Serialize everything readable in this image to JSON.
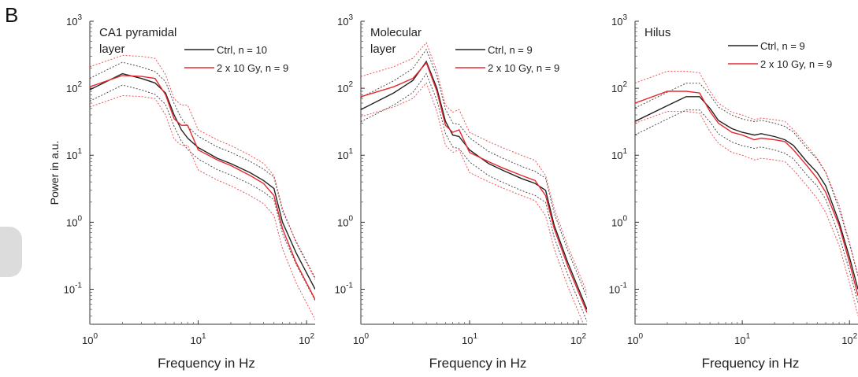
{
  "figure": {
    "panel_letter": "B",
    "y_axis_label": "Power in a.u."
  },
  "chart_data": [
    {
      "type": "line",
      "title": "CA1 pyramidal layer",
      "title_lines": [
        "CA1 pyramidal",
        "layer"
      ],
      "xlabel": "Frequency in Hz",
      "ylabel": "Power in a.u.",
      "xscale": "log",
      "yscale": "log",
      "xlim": [
        1,
        120
      ],
      "ylim": [
        0.03,
        1000
      ],
      "grid": false,
      "legend": "top-right",
      "x_ticks": [
        {
          "base": "10",
          "exp": "0"
        },
        {
          "base": "10",
          "exp": "1"
        },
        {
          "base": "10",
          "exp": "2"
        }
      ],
      "y_ticks": [
        {
          "base": "10",
          "exp": "-1"
        },
        {
          "base": "10",
          "exp": "0"
        },
        {
          "base": "10",
          "exp": "1"
        },
        {
          "base": "10",
          "exp": "2"
        },
        {
          "base": "10",
          "exp": "3"
        }
      ],
      "x": [
        1,
        2,
        3,
        4,
        5,
        6,
        7,
        8,
        10,
        15,
        20,
        30,
        40,
        50,
        60,
        80,
        120
      ],
      "series": [
        {
          "name": "Ctrl, n = 10",
          "color": "#222222",
          "values": [
            95,
            165,
            140,
            120,
            85,
            40,
            24,
            18,
            13,
            9,
            7.5,
            5.5,
            4.2,
            3.2,
            1.0,
            0.35,
            0.1
          ],
          "band": 0.17
        },
        {
          "name": "2 x 10 Gy, n = 9",
          "color": "#e8282e",
          "values": [
            105,
            155,
            150,
            140,
            80,
            35,
            28,
            28,
            12,
            8.5,
            7,
            5.0,
            3.8,
            2.5,
            0.8,
            0.25,
            0.07
          ],
          "band": 0.3
        }
      ]
    },
    {
      "type": "line",
      "title": "Molecular layer",
      "title_lines": [
        "Molecular",
        "layer"
      ],
      "xlabel": "Frequency in Hz",
      "xscale": "log",
      "yscale": "log",
      "xlim": [
        1,
        120
      ],
      "ylim": [
        0.03,
        1000
      ],
      "grid": false,
      "legend": "top-right",
      "x_ticks": [
        {
          "base": "10",
          "exp": "0"
        },
        {
          "base": "10",
          "exp": "1"
        },
        {
          "base": "10",
          "exp": "2"
        }
      ],
      "y_ticks": [
        {
          "base": "10",
          "exp": "-1"
        },
        {
          "base": "10",
          "exp": "0"
        },
        {
          "base": "10",
          "exp": "1"
        },
        {
          "base": "10",
          "exp": "2"
        },
        {
          "base": "10",
          "exp": "3"
        }
      ],
      "x": [
        1,
        2,
        3,
        4,
        5,
        6,
        7,
        8,
        10,
        15,
        20,
        30,
        40,
        50,
        60,
        80,
        120
      ],
      "series": [
        {
          "name": "Ctrl, n = 9",
          "color": "#222222",
          "values": [
            48,
            85,
            130,
            250,
            100,
            32,
            20,
            19,
            12,
            7.5,
            6,
            4.5,
            3.8,
            3.0,
            0.9,
            0.25,
            0.05
          ],
          "band": 0.18
        },
        {
          "name": "2 x 10 Gy, n = 9",
          "color": "#e8282e",
          "values": [
            75,
            105,
            140,
            240,
            90,
            28,
            22,
            24,
            11,
            8,
            6.5,
            5,
            4.2,
            2.5,
            0.8,
            0.22,
            0.045
          ],
          "band": 0.3
        }
      ]
    },
    {
      "type": "line",
      "title": "Hilus",
      "title_lines": [
        "Hilus"
      ],
      "xlabel": "Frequency in Hz",
      "xscale": "log",
      "yscale": "log",
      "xlim": [
        1,
        120
      ],
      "ylim": [
        0.03,
        1000
      ],
      "grid": false,
      "legend": "top-right",
      "x_ticks": [
        {
          "base": "10",
          "exp": "0"
        },
        {
          "base": "10",
          "exp": "1"
        },
        {
          "base": "10",
          "exp": "2"
        }
      ],
      "y_ticks": [
        {
          "base": "10",
          "exp": "-1"
        },
        {
          "base": "10",
          "exp": "0"
        },
        {
          "base": "10",
          "exp": "1"
        },
        {
          "base": "10",
          "exp": "2"
        },
        {
          "base": "10",
          "exp": "3"
        }
      ],
      "x": [
        1,
        2,
        3,
        4,
        5,
        6,
        8,
        10,
        13,
        15,
        20,
        25,
        30,
        40,
        50,
        60,
        80,
        100,
        120
      ],
      "series": [
        {
          "name": "Ctrl, n = 9",
          "color": "#222222",
          "values": [
            32,
            55,
            75,
            75,
            50,
            33,
            25,
            22,
            20,
            21,
            19,
            17,
            14,
            8,
            5.5,
            3.5,
            1.0,
            0.3,
            0.1
          ],
          "band": 0.2
        },
        {
          "name": "2 x 10 Gy, n = 9",
          "color": "#e8282e",
          "values": [
            60,
            90,
            90,
            85,
            45,
            30,
            22,
            20,
            17,
            18,
            17,
            16,
            12,
            7,
            4.5,
            2.8,
            0.9,
            0.25,
            0.08
          ],
          "band": 0.3
        }
      ]
    }
  ]
}
